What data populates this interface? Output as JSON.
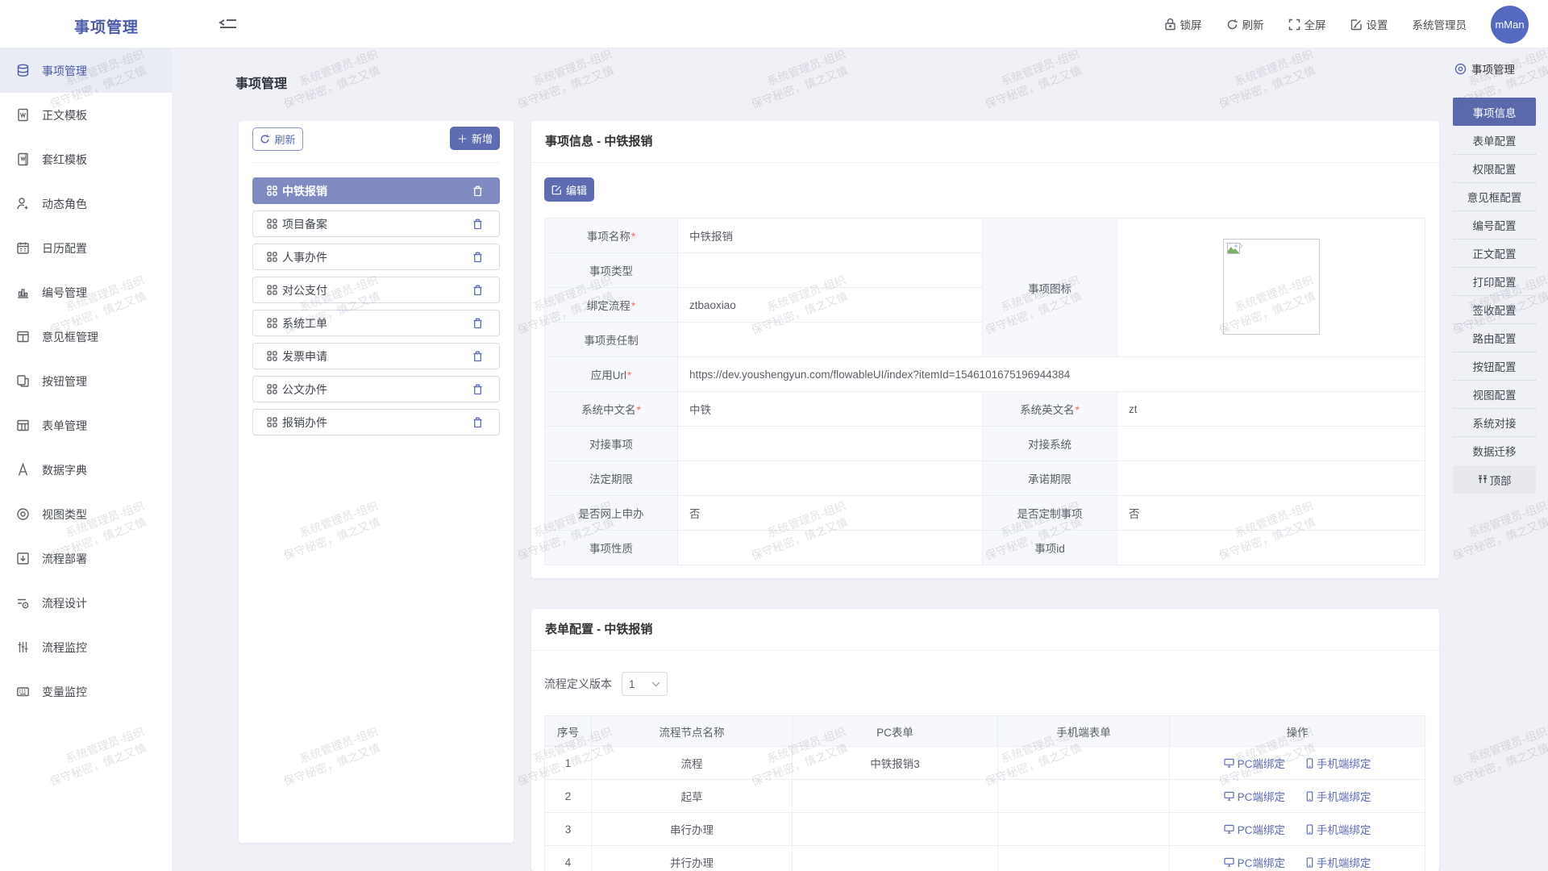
{
  "colors": {
    "primary": "#5e6cb2",
    "selected_item_bg": "#7e8ac0",
    "anchor_active_bg": "#5a68ac",
    "logo_text": "#4d5bab",
    "page_bg": "#f0f1f6",
    "link": "#5f6db4",
    "required_mark": "#f56c6c",
    "avatar_bg": "#5569c1"
  },
  "header": {
    "logo": "事项管理",
    "actions": [
      {
        "label": "锁屏",
        "icon": "lock-icon"
      },
      {
        "label": "刷新",
        "icon": "refresh-icon"
      },
      {
        "label": "全屏",
        "icon": "fullscreen-icon"
      },
      {
        "label": "设置",
        "icon": "settings-icon"
      }
    ],
    "username": "系统管理员",
    "avatar_text": "mMan"
  },
  "sidebar": {
    "items": [
      {
        "label": "事项管理",
        "icon": "database-icon",
        "active": true
      },
      {
        "label": "正文模板",
        "icon": "document-icon"
      },
      {
        "label": "套红模板",
        "icon": "red-template-icon"
      },
      {
        "label": "动态角色",
        "icon": "user-plus-icon"
      },
      {
        "label": "日历配置",
        "icon": "calendar-icon"
      },
      {
        "label": "编号管理",
        "icon": "bar-chart-icon"
      },
      {
        "label": "意见框管理",
        "icon": "opinion-box-icon"
      },
      {
        "label": "按钮管理",
        "icon": "button-icon"
      },
      {
        "label": "表单管理",
        "icon": "form-table-icon"
      },
      {
        "label": "数据字典",
        "icon": "dictionary-icon"
      },
      {
        "label": "视图类型",
        "icon": "view-type-icon"
      },
      {
        "label": "流程部署",
        "icon": "deploy-icon"
      },
      {
        "label": "流程设计",
        "icon": "flow-design-icon"
      },
      {
        "label": "流程监控",
        "icon": "flow-monitor-icon"
      },
      {
        "label": "变量监控",
        "icon": "variable-monitor-icon"
      }
    ]
  },
  "page": {
    "title": "事项管理"
  },
  "item_panel": {
    "refresh_label": "刷新",
    "add_label": "新增",
    "items": [
      {
        "label": "中铁报销",
        "selected": true
      },
      {
        "label": "项目备案"
      },
      {
        "label": "人事办件"
      },
      {
        "label": "对公支付"
      },
      {
        "label": "系统工单"
      },
      {
        "label": "发票申请"
      },
      {
        "label": "公文办件"
      },
      {
        "label": "报销办件"
      }
    ]
  },
  "info_card": {
    "title": "事项信息 - 中铁报销",
    "edit_label": "编辑",
    "icon_label": "事项图标",
    "rows_top": [
      {
        "label": "事项名称",
        "value": "中铁报销"
      },
      {
        "label": "事项类型",
        "value": ""
      },
      {
        "label": "绑定流程",
        "value": "ztbaoxiao"
      },
      {
        "label": "事项责任制",
        "value": ""
      }
    ],
    "url_row": {
      "label": "应用Url",
      "value": "https://dev.youshengyun.com/flowableUI/index?itemId=1546101675196944384"
    },
    "rows": [
      {
        "left": {
          "label": "系统中文名",
          "value": "中铁"
        },
        "right": {
          "label": "系统英文名",
          "value": "zt"
        }
      },
      {
        "left": {
          "label": "对接事项",
          "value": ""
        },
        "right": {
          "label": "对接系统",
          "value": ""
        }
      },
      {
        "left": {
          "label": "法定期限",
          "value": ""
        },
        "right": {
          "label": "承诺期限",
          "value": ""
        }
      },
      {
        "left": {
          "label": "是否网上申办",
          "value": "否"
        },
        "right": {
          "label": "是否定制事项",
          "value": "否"
        }
      },
      {
        "left": {
          "label": "事项性质",
          "value": ""
        },
        "right": {
          "label": "事项id",
          "value": ""
        }
      }
    ]
  },
  "form_card": {
    "title": "表单配置 - 中铁报销",
    "version_label": "流程定义版本",
    "version_value": "1",
    "headers": [
      "序号",
      "流程节点名称",
      "PC表单",
      "手机端表单",
      "操作"
    ],
    "pc_bind_label": "PC端绑定",
    "mobile_bind_label": "手机端绑定",
    "rows": [
      {
        "seq": "1",
        "node": "流程",
        "pc_form": "中铁报销3",
        "mobile_form": ""
      },
      {
        "seq": "2",
        "node": "起草",
        "pc_form": "",
        "mobile_form": ""
      },
      {
        "seq": "3",
        "node": "串行办理",
        "pc_form": "",
        "mobile_form": ""
      },
      {
        "seq": "4",
        "node": "并行办理",
        "pc_form": "",
        "mobile_form": ""
      }
    ]
  },
  "anchor_nav": {
    "title": "事项管理",
    "items": [
      "事项信息",
      "表单配置",
      "权限配置",
      "意见框配置",
      "编号配置",
      "正文配置",
      "打印配置",
      "签收配置",
      "路由配置",
      "按钮配置",
      "视图配置",
      "系统对接",
      "数据迁移"
    ],
    "top_label": "顶部"
  },
  "watermark": {
    "line1": "系统管理员-组织",
    "line2": "保守秘密，慎之又慎"
  }
}
